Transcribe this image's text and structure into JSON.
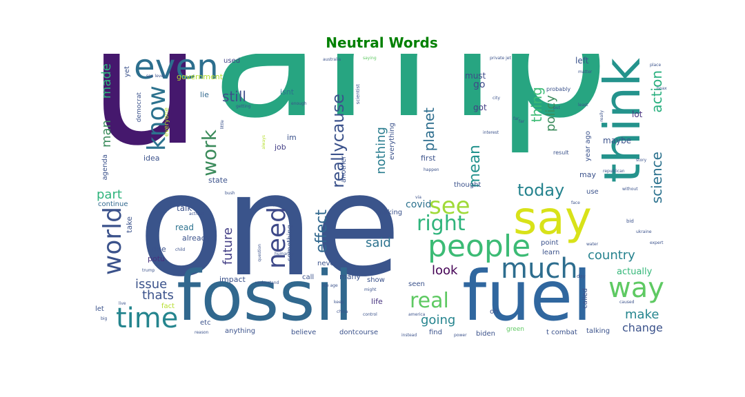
{
  "title": "Neutral Words",
  "title_color": "#008000",
  "palette": "viridis",
  "words": {
    "uamp_u": "u",
    "amp": "amp",
    "one": "one",
    "fossil": "fossil",
    "fuel": "fuel",
    "think": "think",
    "say": "say",
    "even": "even",
    "know": "know",
    "people": "people",
    "much": "much",
    "time": "time",
    "way": "way",
    "world": "world",
    "work": "work",
    "need": "need",
    "see": "see",
    "right": "right",
    "real": "real",
    "today": "today",
    "reallycause": "reallycause",
    "future": "future",
    "effect": "effect",
    "planet": "planet",
    "mean": "mean",
    "nothing": "nothing",
    "still": "still",
    "part": "part",
    "thats": "thats",
    "issue": "issue",
    "made": "made",
    "man": "man",
    "thing": "thing",
    "policy": "policy",
    "action": "action",
    "science": "science",
    "country": "country",
    "said": "said",
    "look": "look",
    "going": "going",
    "make": "make",
    "change": "change",
    "actually": "actually",
    "covid": "covid",
    "go": "go",
    "got": "got",
    "must": "must",
    "maybe": "maybe",
    "left": "left",
    "lot": "lot",
    "government": "government",
    "used": "used",
    "lie": "lie",
    "isnt": "isnt",
    "job": "job",
    "im": "im",
    "idea": "idea",
    "state": "state",
    "continue": "continue",
    "take": "take",
    "talk": "talk",
    "read": "read",
    "already": "already",
    "due": "due",
    "potu": "potu",
    "impact": "impact",
    "many": "many",
    "show": "show",
    "never": "never",
    "call": "call",
    "seen": "seen",
    "life": "life",
    "oh": "oh",
    "let": "let",
    "fact": "fact",
    "etc": "etc",
    "anything": "anything",
    "believe": "believe",
    "dontcourse": "dontcourse",
    "find": "find",
    "biden": "biden",
    "green": "green",
    "t_combat": "t combat",
    "talking": "talking",
    "first": "first",
    "thought": "thought",
    "may": "may",
    "use": "use",
    "point": "point",
    "learn": "learn",
    "year_ago": "year ago",
    "making": "making",
    "something": "something",
    "everything": "everything",
    "another": "another",
    "agenda": "agenda",
    "yet": "yet",
    "democrat": "democrat",
    "everyone": "everyone",
    "called": "called",
    "probably": "probably",
    "result": "result",
    "small_1": "australia",
    "small_2": "saying",
    "small_3": "private jet",
    "small_4": "republican",
    "small_5": "scientist",
    "small_6": "enough",
    "small_7": "getting",
    "small_8": "always",
    "small_9": "hoax",
    "small_10": "story",
    "small_11": "without",
    "small_12": "water",
    "small_13": "expert",
    "small_14": "ukraine",
    "small_15": "china",
    "small_16": "america",
    "small_17": "keep",
    "small_18": "control",
    "small_19": "ice age",
    "small_20": "might",
    "small_21": "reason",
    "small_22": "instead",
    "small_23": "power",
    "small_24": "day",
    "small_25": "caused",
    "small_26": "big",
    "small_27": "live",
    "small_28": "trump",
    "small_29": "child",
    "small_30": "activist",
    "small_31": "question",
    "small_32": "humanity",
    "small_33": "understand",
    "small_34": "happen",
    "small_35": "interest",
    "small_36": "matter",
    "small_37": "city",
    "small_38": "face",
    "small_39": "place",
    "small_40": "least",
    "small_41": "bid",
    "small_42": "sea level",
    "small_43": "little",
    "small_44": "bush",
    "small_45": "guy",
    "small_46": "far",
    "small_47": "far",
    "small_48": "really",
    "small_49": "put",
    "small_50": "via"
  }
}
